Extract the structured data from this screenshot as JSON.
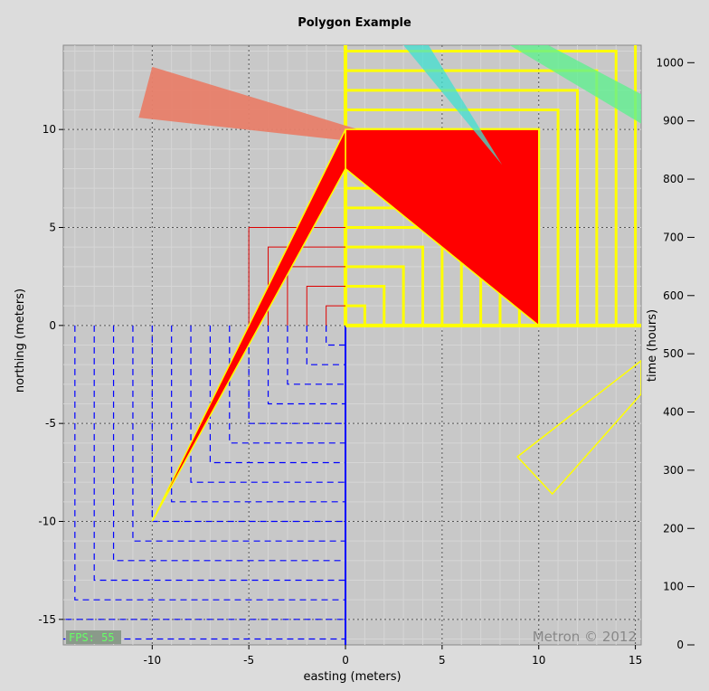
{
  "title": "Polygon Example",
  "chart_data": {
    "type": "polygon",
    "xlabel": "easting (meters)",
    "ylabel": "northing (meters)",
    "y2label": "time (hours)",
    "xlim": [
      -14.6,
      15.3
    ],
    "ylim": [
      -16.3,
      14.3
    ],
    "y2lim": [
      0,
      1030
    ],
    "xticks": [
      -10,
      -5,
      0,
      5,
      10,
      15
    ],
    "yticks": [
      -15,
      -10,
      -5,
      0,
      5,
      10
    ],
    "y2ticks": [
      0,
      100,
      200,
      300,
      400,
      500,
      600,
      700,
      800,
      900,
      1000
    ],
    "grid": true,
    "fps_label": "FPS: 55",
    "watermark": "Metron © 2012",
    "blue_squares": {
      "color": "#0000ff",
      "corner": [
        0,
        0
      ],
      "sizes": [
        1,
        2,
        3,
        4,
        5,
        6,
        7,
        8,
        9,
        10,
        11,
        12,
        13,
        14,
        15,
        16
      ]
    },
    "yellow_squares": {
      "color": "#ffff00",
      "corner": [
        0,
        0
      ],
      "sizes": [
        1,
        2,
        3,
        4,
        5,
        6,
        7,
        8,
        9,
        10,
        11,
        12,
        13,
        14,
        15,
        16
      ]
    },
    "red_squares": {
      "color": "#dd0000",
      "corner": [
        0,
        0
      ],
      "sizes": [
        1,
        2,
        3,
        4,
        5
      ]
    },
    "polygons": [
      {
        "name": "salmon",
        "fill": "#e8806a",
        "opacity": 0.95,
        "stroke": "none",
        "points": [
          [
            -10,
            13.2
          ],
          [
            -10.7,
            10.6
          ],
          [
            4,
            9
          ]
        ]
      },
      {
        "name": "red-triangle",
        "fill": "#ff0000",
        "opacity": 1,
        "stroke": "#ffff00",
        "points": [
          [
            0,
            10
          ],
          [
            10,
            10
          ],
          [
            10,
            0
          ],
          [
            0,
            8
          ]
        ]
      },
      {
        "name": "red-sliver",
        "fill": "#ff0000",
        "opacity": 1,
        "stroke": "#ffff00",
        "points": [
          [
            0,
            10
          ],
          [
            0,
            8
          ],
          [
            -10,
            -10
          ]
        ]
      },
      {
        "name": "cyan-wedge",
        "fill": "#40e0d0",
        "opacity": 0.75,
        "stroke": "none",
        "points": [
          [
            3,
            14.3
          ],
          [
            4.3,
            14.3
          ],
          [
            8.1,
            8.2
          ]
        ]
      },
      {
        "name": "green-wedge",
        "fill": "#60f090",
        "opacity": 0.8,
        "stroke": "none",
        "points": [
          [
            8.5,
            14.3
          ],
          [
            10.5,
            14.3
          ],
          [
            15.3,
            11.8
          ],
          [
            15.3,
            10.3
          ]
        ]
      },
      {
        "name": "yellow-outline",
        "fill": "none",
        "opacity": 1,
        "stroke": "#ffff00",
        "points": [
          [
            15.3,
            -1.8
          ],
          [
            8.9,
            -6.7
          ],
          [
            10.7,
            -8.6
          ],
          [
            15.3,
            -3.5
          ]
        ]
      }
    ]
  }
}
